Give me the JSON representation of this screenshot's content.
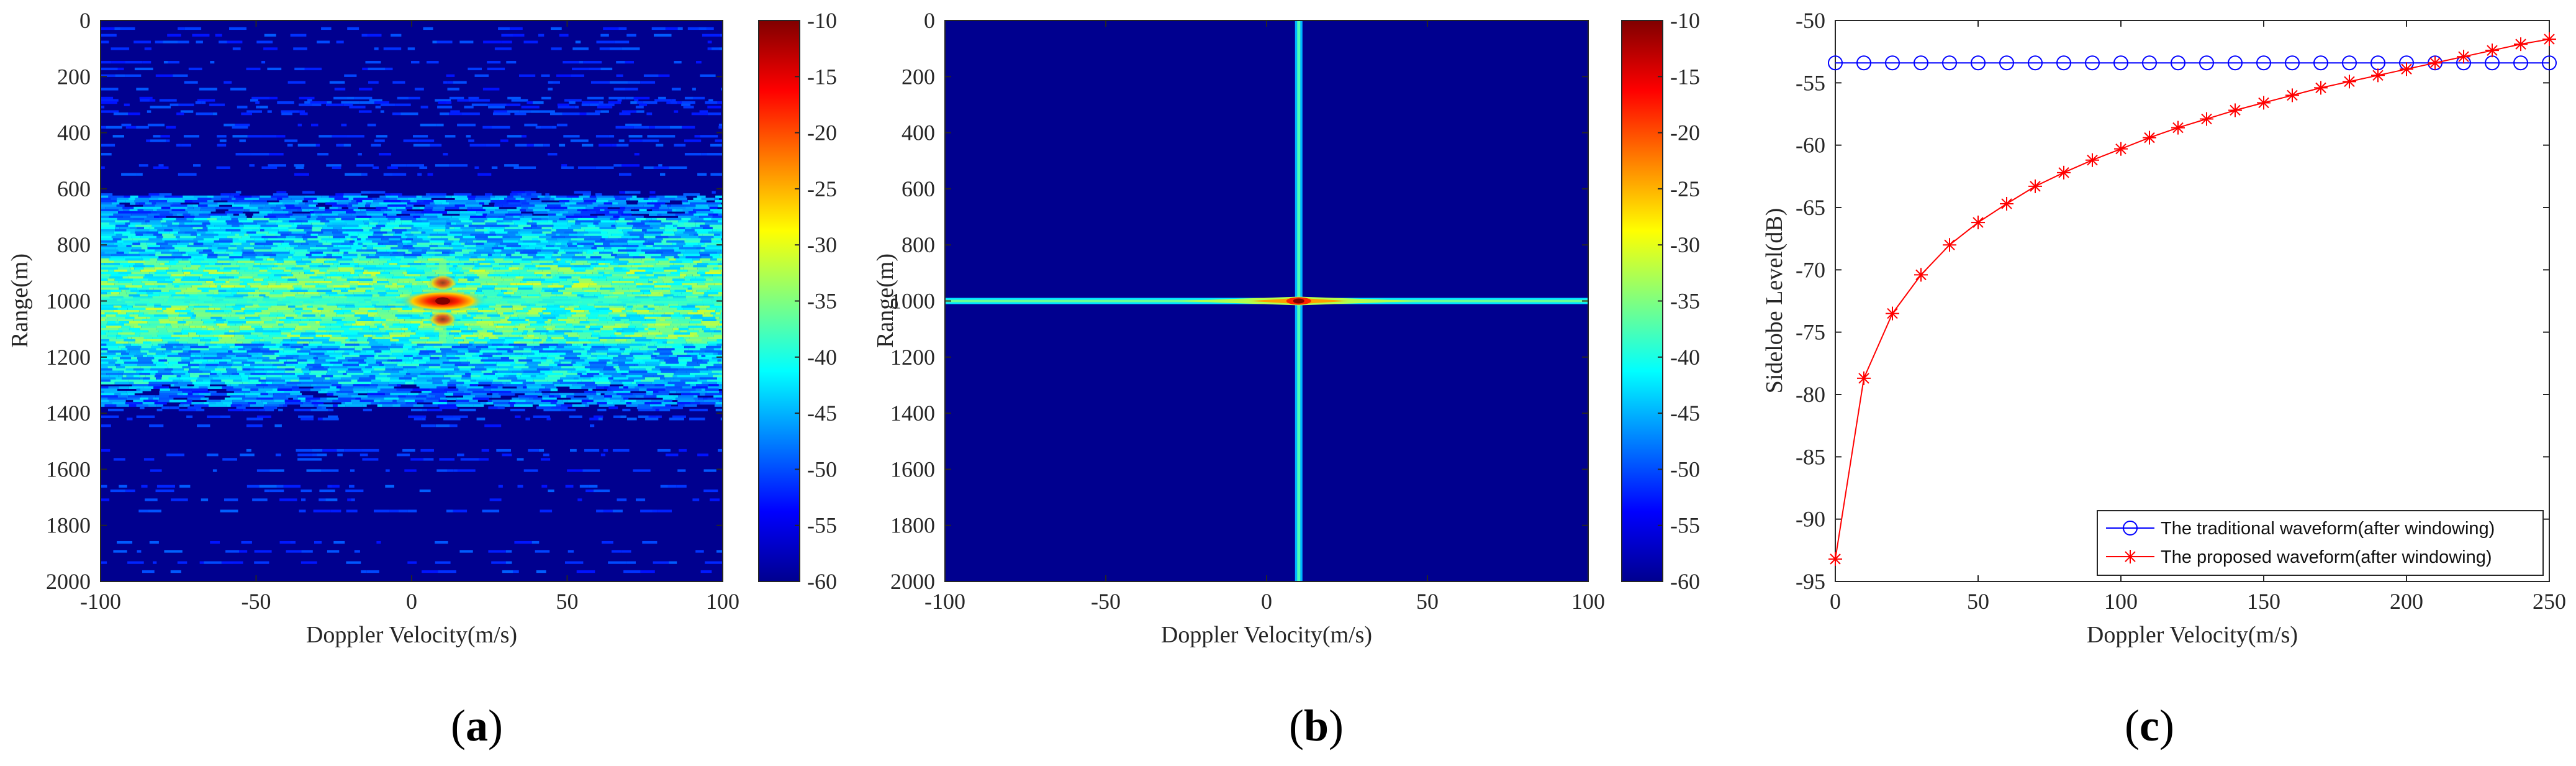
{
  "chart_data": [
    {
      "type": "heatmap",
      "panel_label": "a",
      "xlabel": "Doppler Velocity(m/s)",
      "ylabel": "Range(m)",
      "xlim": [
        -100,
        100
      ],
      "ylim": [
        0,
        2000
      ],
      "x_ticks": [
        -100,
        -50,
        0,
        50,
        100
      ],
      "y_ticks": [
        0,
        200,
        400,
        600,
        800,
        1000,
        1200,
        1400,
        1600,
        1800,
        2000
      ],
      "y_reversed": true,
      "colorbar": {
        "range": [
          -60,
          -10
        ],
        "ticks": [
          -10,
          -15,
          -20,
          -25,
          -30,
          -35,
          -40,
          -45,
          -50,
          -55,
          -60
        ],
        "colormap": "jet"
      },
      "peak": {
        "x": 10,
        "y": 1000,
        "value": -10
      },
      "pattern": "noisy sidelobe bands spread across range 650-1350 m, strongest near 880-1110 m"
    },
    {
      "type": "heatmap",
      "panel_label": "b",
      "xlabel": "Doppler Velocity(m/s)",
      "ylabel": "Range(m)",
      "xlim": [
        -100,
        100
      ],
      "ylim": [
        0,
        2000
      ],
      "x_ticks": [
        -100,
        -50,
        0,
        50,
        100
      ],
      "y_ticks": [
        0,
        200,
        400,
        600,
        800,
        1000,
        1200,
        1400,
        1600,
        1800,
        2000
      ],
      "y_reversed": true,
      "colorbar": {
        "range": [
          -60,
          -10
        ],
        "ticks": [
          -10,
          -15,
          -20,
          -25,
          -30,
          -35,
          -40,
          -45,
          -50,
          -55,
          -60
        ],
        "colormap": "jet"
      },
      "peak": {
        "x": 10,
        "y": 1000,
        "value": -10
      },
      "pattern": "clean cross-shaped response: horizontal ridge at range 1000 m, vertical ridge at velocity 10 m/s"
    },
    {
      "type": "line",
      "panel_label": "c",
      "xlabel": "Doppler Velocity(m/s)",
      "ylabel": "Sidelobe Level(dB)",
      "xlim": [
        0,
        250
      ],
      "ylim": [
        -95,
        -50
      ],
      "x_ticks": [
        0,
        50,
        100,
        150,
        200,
        250
      ],
      "y_ticks": [
        -50,
        -55,
        -60,
        -65,
        -70,
        -75,
        -80,
        -85,
        -90,
        -95
      ],
      "legend_position": "bottom-right",
      "grid": false,
      "x": [
        0,
        10,
        20,
        30,
        40,
        50,
        60,
        70,
        80,
        90,
        100,
        110,
        120,
        130,
        140,
        150,
        160,
        170,
        180,
        190,
        200,
        210,
        220,
        230,
        240,
        250
      ],
      "series": [
        {
          "name": "The traditional waveform(after windowing)",
          "color": "#0000ff",
          "marker": "circle",
          "values": [
            -53.4,
            -53.4,
            -53.4,
            -53.4,
            -53.4,
            -53.4,
            -53.4,
            -53.4,
            -53.4,
            -53.4,
            -53.4,
            -53.4,
            -53.4,
            -53.4,
            -53.4,
            -53.4,
            -53.4,
            -53.4,
            -53.4,
            -53.4,
            -53.4,
            -53.4,
            -53.4,
            -53.4,
            -53.4,
            -53.4
          ]
        },
        {
          "name": "The proposed waveform(after windowing)",
          "color": "#ff0000",
          "marker": "asterisk",
          "values": [
            -93.2,
            -78.7,
            -73.5,
            -70.4,
            -68.0,
            -66.2,
            -64.7,
            -63.3,
            -62.2,
            -61.2,
            -60.3,
            -59.4,
            -58.6,
            -57.9,
            -57.2,
            -56.6,
            -56.0,
            -55.4,
            -54.9,
            -54.4,
            -53.9,
            -53.4,
            -52.9,
            -52.4,
            -51.9,
            -51.5
          ]
        }
      ]
    }
  ]
}
